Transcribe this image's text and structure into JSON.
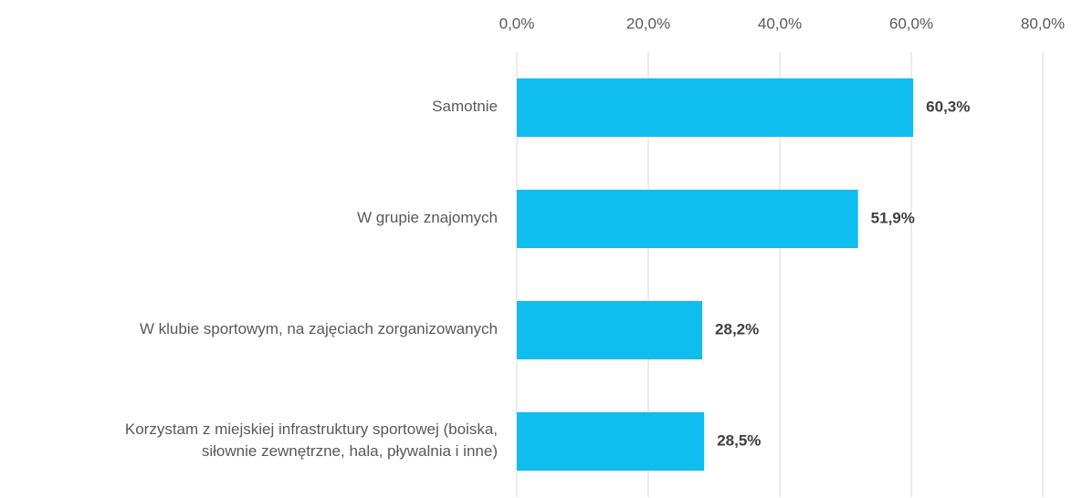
{
  "chart_data": {
    "type": "barh",
    "categories": [
      "Samotnie",
      "W grupie znajomych",
      "W klubie sportowym, na zajęciach zorganizowanych",
      "Korzystam z miejskiej infrastruktury sportowej (boiska,\nsiłownie zewnętrzne, hala, pływalnia i inne)"
    ],
    "values": [
      60.3,
      51.9,
      28.2,
      28.5
    ],
    "value_labels": [
      "60,3%",
      "51,9%",
      "28,2%",
      "28,5%"
    ],
    "color": "#0fbdee",
    "xlim": [
      0,
      80
    ],
    "xticks": [
      {
        "value": 0,
        "label": "0,0%"
      },
      {
        "value": 20,
        "label": "20,0%"
      },
      {
        "value": 40,
        "label": "40,0%"
      },
      {
        "value": 60,
        "label": "60,0%"
      },
      {
        "value": 80,
        "label": "80,0%"
      }
    ],
    "grid": true
  }
}
